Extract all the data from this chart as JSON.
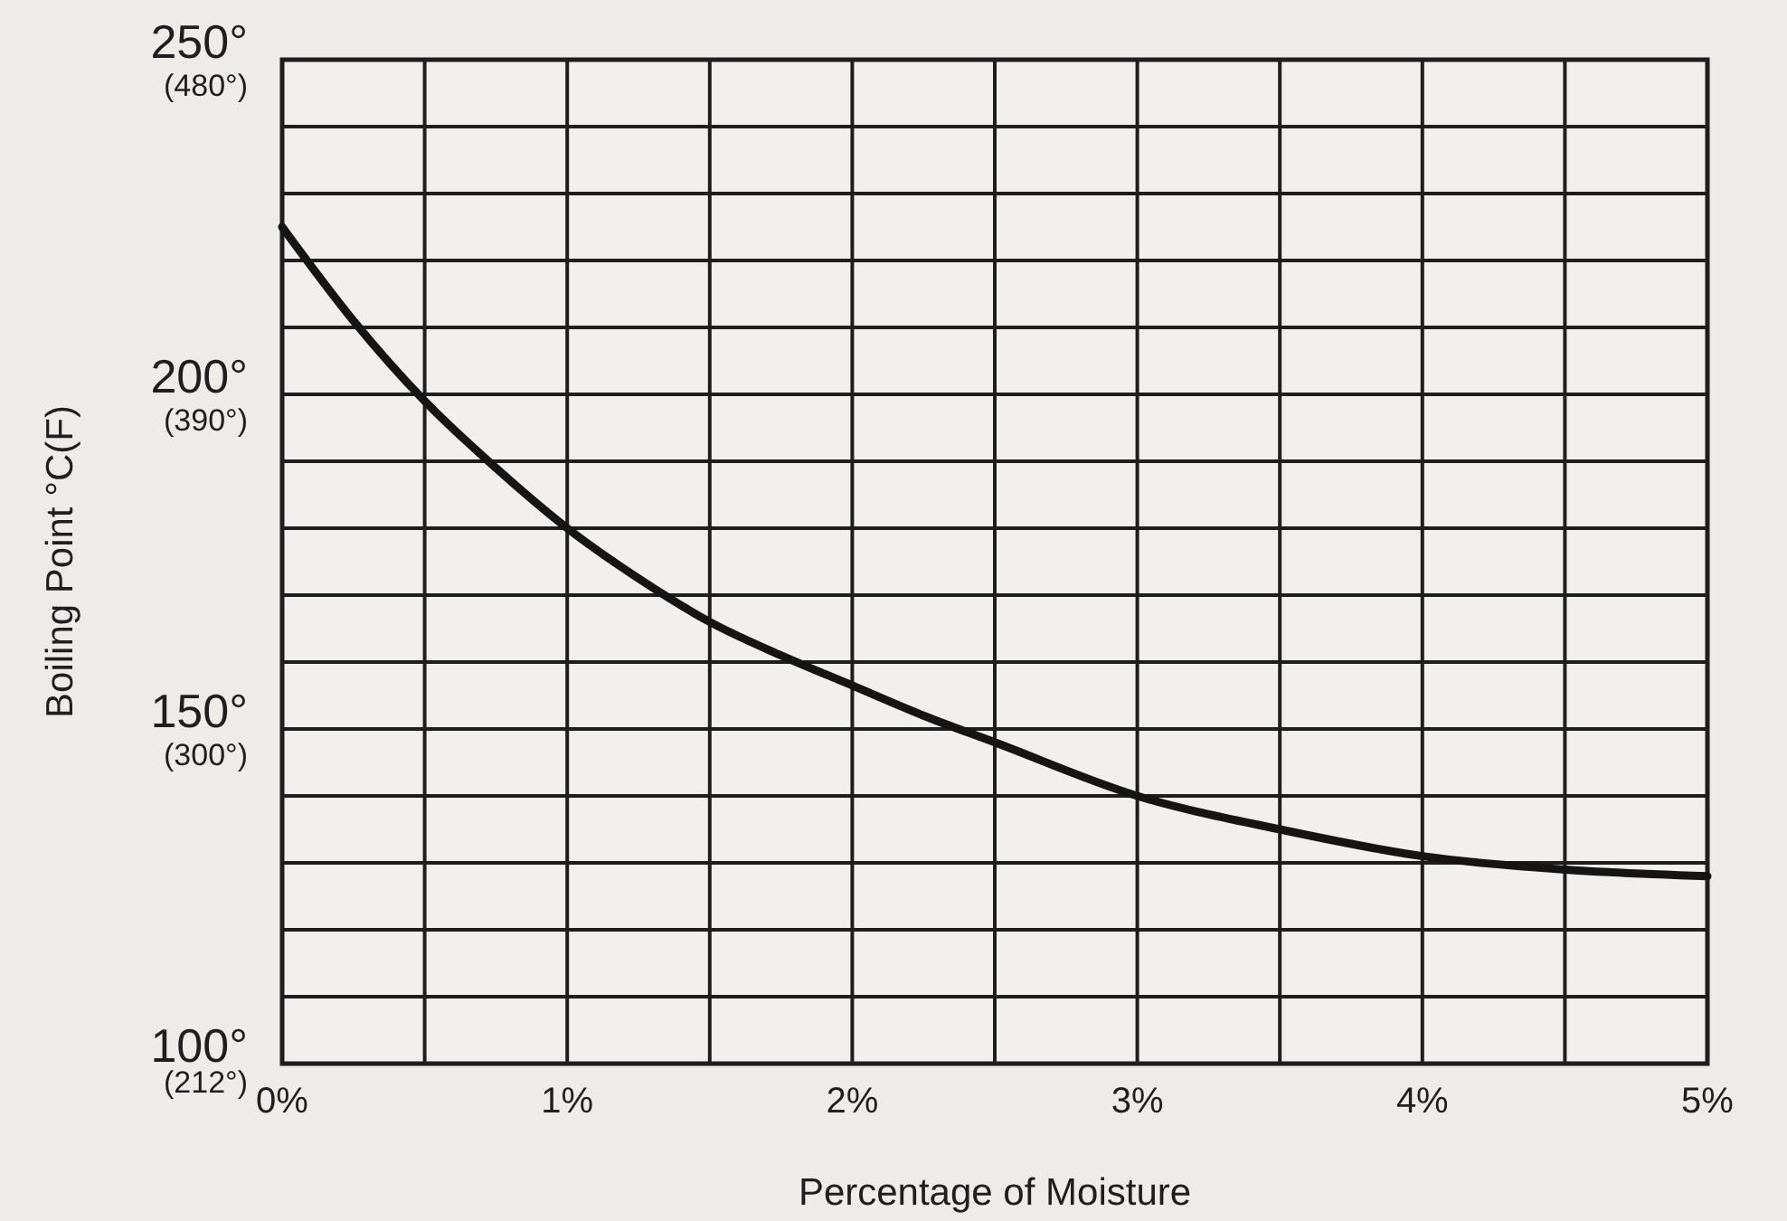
{
  "chart_data": {
    "type": "line",
    "xlabel": "Percentage of Moisture",
    "ylabel": "Boiling Point °C(F)",
    "x": [
      0,
      0.25,
      0.5,
      0.75,
      1,
      1.25,
      1.5,
      1.75,
      2,
      2.25,
      2.5,
      3,
      3.5,
      4,
      4.5,
      5
    ],
    "series": [
      {
        "color": "#151515",
        "values": [
          225,
          211,
          199,
          189,
          180,
          172.5,
          166,
          161,
          156.5,
          152,
          148,
          140,
          135,
          131,
          129,
          128
        ]
      }
    ],
    "xlim": [
      0,
      5
    ],
    "xticks": [
      {
        "value": 0,
        "label": "0%"
      },
      {
        "value": 0.5,
        "label": null
      },
      {
        "value": 1,
        "label": "1%"
      },
      {
        "value": 1.5,
        "label": null
      },
      {
        "value": 2,
        "label": "2%"
      },
      {
        "value": 2.5,
        "label": null
      },
      {
        "value": 3,
        "label": "3%"
      },
      {
        "value": 3.5,
        "label": null
      },
      {
        "value": 4,
        "label": "4%"
      },
      {
        "value": 4.5,
        "label": null
      },
      {
        "value": 5,
        "label": "5%"
      }
    ],
    "ylim": [
      100,
      250
    ],
    "yticks": [
      {
        "value": 100,
        "label": "100°"
      },
      {
        "value": 110,
        "label": null
      },
      {
        "value": 120,
        "label": null
      },
      {
        "value": 130,
        "label": null
      },
      {
        "value": 140,
        "label": null
      },
      {
        "value": 150,
        "label": "150°"
      },
      {
        "value": 160,
        "label": null
      },
      {
        "value": 170,
        "label": null
      },
      {
        "value": 180,
        "label": null
      },
      {
        "value": 190,
        "label": null
      },
      {
        "value": 200,
        "label": "200°"
      },
      {
        "value": 210,
        "label": null
      },
      {
        "value": 220,
        "label": null
      },
      {
        "value": 230,
        "label": null
      },
      {
        "value": 240,
        "label": null
      },
      {
        "value": 250,
        "label": "250°"
      }
    ],
    "y2lim": [
      210,
      480
    ],
    "y2ticks": [
      {
        "value": 212,
        "label": "(212°)"
      },
      {
        "value": 300,
        "label": "(300°)"
      },
      {
        "value": 390,
        "label": "(390°)"
      },
      {
        "value": 480,
        "label": "(480°)"
      }
    ],
    "grid": true
  }
}
